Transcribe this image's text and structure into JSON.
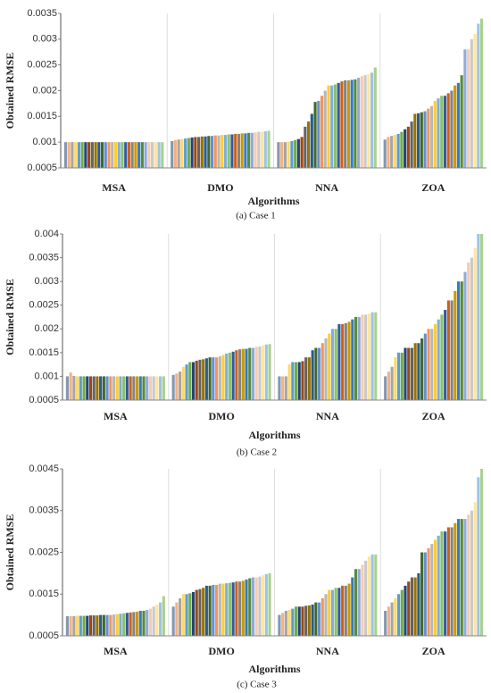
{
  "colors": [
    "#8497b0",
    "#f4b183",
    "#a5a5a5",
    "#ffd966",
    "#5b9bd5",
    "#70ad47",
    "#264478",
    "#9e480e",
    "#636363",
    "#997300",
    "#255e91",
    "#43682b",
    "#698ed0",
    "#f1975a",
    "#b7b7b7",
    "#ffcd33",
    "#7cafdd",
    "#8cc168",
    "#335aa1",
    "#d26012",
    "#848484",
    "#cc9a00",
    "#327dc2",
    "#5a8a39",
    "#8faadc",
    "#f8cbad",
    "#c9c9c9",
    "#ffe699",
    "#9dc3e6",
    "#a9d18e"
  ],
  "chart_data": [
    {
      "type": "bar",
      "caption": "(a) Case 1",
      "xlabel": "Algorithms",
      "ylabel": "Obtained RMSE",
      "categories": [
        "MSA",
        "DMO",
        "NNA",
        "ZOA"
      ],
      "values": [
        [
          0.001,
          0.001,
          0.001,
          0.001,
          0.001,
          0.001,
          0.001,
          0.001,
          0.001,
          0.001,
          0.001,
          0.001,
          0.001,
          0.001,
          0.001,
          0.001,
          0.001,
          0.001,
          0.001,
          0.001,
          0.001,
          0.001,
          0.001,
          0.001,
          0.001,
          0.001,
          0.001,
          0.001,
          0.001,
          0.001
        ],
        [
          0.00102,
          0.00104,
          0.00105,
          0.00106,
          0.00107,
          0.00108,
          0.00109,
          0.0011,
          0.0011,
          0.00111,
          0.00111,
          0.00112,
          0.00112,
          0.00113,
          0.00113,
          0.00114,
          0.00114,
          0.00115,
          0.00115,
          0.00116,
          0.00116,
          0.00117,
          0.00117,
          0.00118,
          0.00118,
          0.00119,
          0.0012,
          0.0012,
          0.00121,
          0.00122
        ],
        [
          0.001,
          0.001,
          0.001,
          0.00101,
          0.00102,
          0.00104,
          0.00106,
          0.0011,
          0.0013,
          0.0014,
          0.00155,
          0.00178,
          0.0018,
          0.0019,
          0.002,
          0.0021,
          0.0021,
          0.00212,
          0.00215,
          0.00218,
          0.0022,
          0.0022,
          0.00221,
          0.00222,
          0.00225,
          0.00228,
          0.0023,
          0.00232,
          0.00235,
          0.00245
        ],
        [
          0.00105,
          0.0011,
          0.00112,
          0.00114,
          0.00116,
          0.0012,
          0.00125,
          0.0013,
          0.0014,
          0.00155,
          0.00156,
          0.00158,
          0.0016,
          0.00165,
          0.0017,
          0.0018,
          0.00185,
          0.0019,
          0.0019,
          0.00195,
          0.002,
          0.0021,
          0.00215,
          0.0023,
          0.0028,
          0.0028,
          0.003,
          0.0031,
          0.0033,
          0.0034
        ]
      ],
      "ylim": [
        0.0005,
        0.0035
      ],
      "yticks": [
        0.0005,
        0.001,
        0.0015,
        0.002,
        0.0025,
        0.003,
        0.0035
      ]
    },
    {
      "type": "bar",
      "caption": "(b) Case 2",
      "xlabel": "Algorithms",
      "ylabel": "Obtained RMSE",
      "categories": [
        "MSA",
        "DMO",
        "NNA",
        "ZOA"
      ],
      "values": [
        [
          0.001,
          0.00108,
          0.00101,
          0.001,
          0.001,
          0.001,
          0.001,
          0.001,
          0.001,
          0.001,
          0.001,
          0.001,
          0.001,
          0.001,
          0.001,
          0.001,
          0.001,
          0.001,
          0.001,
          0.001,
          0.001,
          0.001,
          0.001,
          0.001,
          0.001,
          0.001,
          0.001,
          0.001,
          0.001,
          0.001
        ],
        [
          0.00103,
          0.00106,
          0.0011,
          0.0012,
          0.00125,
          0.0013,
          0.0013,
          0.00133,
          0.00135,
          0.00136,
          0.00138,
          0.0014,
          0.0014,
          0.0014,
          0.00142,
          0.00145,
          0.00148,
          0.0015,
          0.00152,
          0.00155,
          0.00157,
          0.00158,
          0.00158,
          0.0016,
          0.0016,
          0.00162,
          0.00163,
          0.00165,
          0.00167,
          0.00168
        ],
        [
          0.001,
          0.001,
          0.001,
          0.00125,
          0.0013,
          0.0013,
          0.0013,
          0.00132,
          0.0014,
          0.0014,
          0.00155,
          0.0016,
          0.0016,
          0.0017,
          0.0018,
          0.0019,
          0.002,
          0.002,
          0.0021,
          0.0021,
          0.00212,
          0.00215,
          0.0022,
          0.00225,
          0.00225,
          0.0023,
          0.0023,
          0.00232,
          0.00235,
          0.00235
        ],
        [
          0.001,
          0.0011,
          0.0012,
          0.0014,
          0.0015,
          0.0015,
          0.0016,
          0.0016,
          0.0016,
          0.0017,
          0.0017,
          0.0018,
          0.0019,
          0.002,
          0.002,
          0.0021,
          0.0022,
          0.0023,
          0.0024,
          0.0026,
          0.0026,
          0.0028,
          0.003,
          0.003,
          0.0032,
          0.0034,
          0.0035,
          0.0037,
          0.004,
          0.004
        ]
      ],
      "ylim": [
        0.0005,
        0.004
      ],
      "yticks": [
        0.0005,
        0.001,
        0.0015,
        0.002,
        0.0025,
        0.003,
        0.0035,
        0.004
      ]
    },
    {
      "type": "bar",
      "caption": "(c) Case 3",
      "xlabel": "Algorithms",
      "ylabel": "Obtained RMSE",
      "categories": [
        "MSA",
        "DMO",
        "NNA",
        "ZOA"
      ],
      "values": [
        [
          0.00097,
          0.00097,
          0.00097,
          0.00098,
          0.00098,
          0.00098,
          0.00098,
          0.00099,
          0.00099,
          0.00099,
          0.001,
          0.001,
          0.001,
          0.001,
          0.00101,
          0.00102,
          0.00103,
          0.00104,
          0.00105,
          0.00106,
          0.00107,
          0.00108,
          0.0011,
          0.0011,
          0.00112,
          0.00115,
          0.0012,
          0.00125,
          0.0013,
          0.00145
        ],
        [
          0.0012,
          0.0013,
          0.0014,
          0.0015,
          0.0015,
          0.00152,
          0.00155,
          0.0016,
          0.00162,
          0.00165,
          0.0017,
          0.0017,
          0.00172,
          0.00172,
          0.00175,
          0.00175,
          0.00176,
          0.00177,
          0.00178,
          0.0018,
          0.0018,
          0.00182,
          0.00185,
          0.00188,
          0.0019,
          0.0019,
          0.00192,
          0.00195,
          0.00198,
          0.002
        ],
        [
          0.001,
          0.00105,
          0.0011,
          0.00112,
          0.00115,
          0.0012,
          0.0012,
          0.0012,
          0.00122,
          0.00123,
          0.00125,
          0.0013,
          0.0013,
          0.0014,
          0.0015,
          0.0016,
          0.0016,
          0.00165,
          0.00165,
          0.0017,
          0.0017,
          0.00175,
          0.0019,
          0.0021,
          0.0021,
          0.0022,
          0.0023,
          0.0024,
          0.00245,
          0.00245
        ],
        [
          0.0011,
          0.0012,
          0.0013,
          0.0014,
          0.0015,
          0.0016,
          0.0017,
          0.0018,
          0.0019,
          0.0019,
          0.002,
          0.0025,
          0.0025,
          0.0026,
          0.0027,
          0.0028,
          0.0029,
          0.003,
          0.003,
          0.0031,
          0.0031,
          0.0032,
          0.0033,
          0.0033,
          0.0033,
          0.0034,
          0.0035,
          0.0037,
          0.0043,
          0.0045
        ]
      ],
      "ylim": [
        0.0005,
        0.0045
      ],
      "yticks": [
        0.0005,
        0.0015,
        0.0025,
        0.0035,
        0.0045
      ]
    }
  ]
}
